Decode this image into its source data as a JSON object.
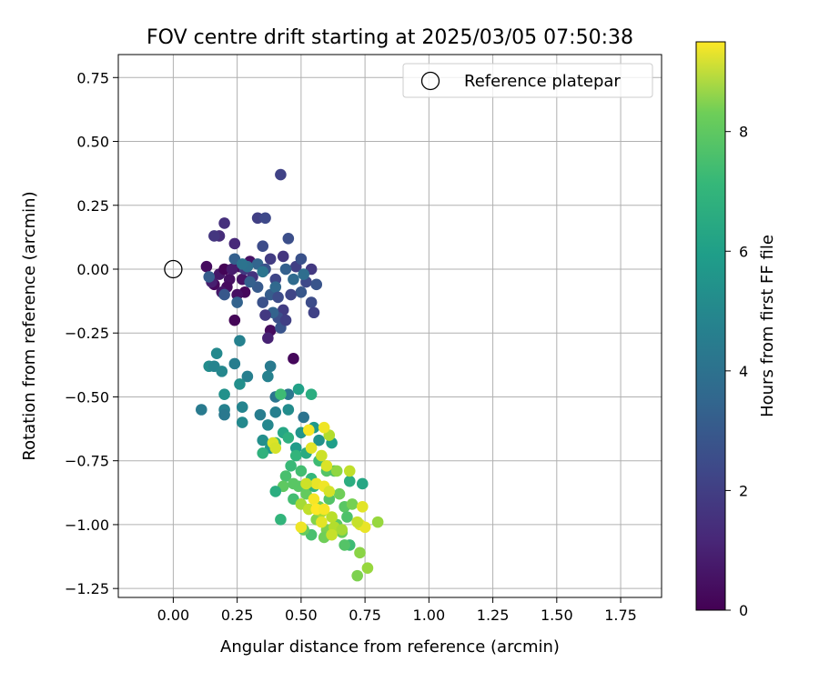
{
  "chart_data": {
    "type": "scatter",
    "title": "FOV centre drift starting at 2025/03/05 07:50:38",
    "xlabel": "Angular distance from reference (arcmin)",
    "ylabel": "Rotation from reference (arcmin)",
    "xlim": [
      -0.215,
      1.91
    ],
    "ylim": [
      -1.285,
      0.84
    ],
    "xticks": [
      0.0,
      0.25,
      0.5,
      0.75,
      1.0,
      1.25,
      1.5,
      1.75
    ],
    "xtick_labels": [
      "0.00",
      "0.25",
      "0.50",
      "0.75",
      "1.00",
      "1.25",
      "1.50",
      "1.75"
    ],
    "yticks": [
      0.75,
      0.5,
      0.25,
      0.0,
      -0.25,
      -0.5,
      -0.75,
      -1.0,
      -1.25
    ],
    "ytick_labels": [
      "0.75",
      "0.50",
      "0.25",
      "0.00",
      "−0.25",
      "−0.50",
      "−0.75",
      "−1.00",
      "−1.25"
    ],
    "grid": true,
    "legend": {
      "position": "top-right",
      "entries": [
        "Reference platepar"
      ]
    },
    "reference_point": {
      "x": 0.0,
      "y": 0.0,
      "label": "Reference platepar"
    },
    "colorbar": {
      "label": "Hours from first FF file",
      "colormap": "viridis",
      "range": [
        0,
        9.5
      ],
      "ticks": [
        0,
        2,
        4,
        6,
        8
      ],
      "tick_labels": [
        "0",
        "2",
        "4",
        "6",
        "8"
      ]
    },
    "series": [
      {
        "color_dimension": "hours",
        "points": [
          {
            "x": 0.13,
            "y": 0.01,
            "c": 0.3
          },
          {
            "x": 0.16,
            "y": -0.06,
            "c": 0.2
          },
          {
            "x": 0.18,
            "y": -0.02,
            "c": 0.6
          },
          {
            "x": 0.2,
            "y": 0.0,
            "c": 0.1
          },
          {
            "x": 0.22,
            "y": -0.04,
            "c": 0.4
          },
          {
            "x": 0.24,
            "y": -0.2,
            "c": 0.1
          },
          {
            "x": 0.26,
            "y": 0.01,
            "c": 0.3
          },
          {
            "x": 0.28,
            "y": -0.09,
            "c": 0.2
          },
          {
            "x": 0.3,
            "y": 0.03,
            "c": 0.5
          },
          {
            "x": 0.21,
            "y": -0.07,
            "c": 0.3
          },
          {
            "x": 0.25,
            "y": -0.1,
            "c": 0.4
          },
          {
            "x": 0.19,
            "y": -0.09,
            "c": 0.6
          },
          {
            "x": 0.23,
            "y": 0.0,
            "c": 0.7
          },
          {
            "x": 0.27,
            "y": -0.04,
            "c": 0.5
          },
          {
            "x": 0.15,
            "y": -0.05,
            "c": 0.8
          },
          {
            "x": 0.38,
            "y": -0.24,
            "c": 0.3
          },
          {
            "x": 0.47,
            "y": -0.35,
            "c": 0.2
          },
          {
            "x": 0.37,
            "y": -0.27,
            "c": 0.9
          },
          {
            "x": 0.18,
            "y": 0.13,
            "c": 1.2
          },
          {
            "x": 0.16,
            "y": 0.13,
            "c": 1.5
          },
          {
            "x": 0.2,
            "y": 0.18,
            "c": 1.3
          },
          {
            "x": 0.24,
            "y": 0.1,
            "c": 1.1
          },
          {
            "x": 0.28,
            "y": 0.0,
            "c": 1.6
          },
          {
            "x": 0.31,
            "y": -0.03,
            "c": 1.4
          },
          {
            "x": 0.33,
            "y": 0.2,
            "c": 1.8
          },
          {
            "x": 0.36,
            "y": 0.2,
            "c": 2.1
          },
          {
            "x": 0.42,
            "y": 0.37,
            "c": 1.9
          },
          {
            "x": 0.35,
            "y": 0.09,
            "c": 2.2
          },
          {
            "x": 0.38,
            "y": 0.04,
            "c": 1.7
          },
          {
            "x": 0.4,
            "y": -0.04,
            "c": 2.0
          },
          {
            "x": 0.43,
            "y": 0.05,
            "c": 1.5
          },
          {
            "x": 0.45,
            "y": 0.12,
            "c": 2.3
          },
          {
            "x": 0.48,
            "y": 0.01,
            "c": 1.8
          },
          {
            "x": 0.5,
            "y": 0.04,
            "c": 2.4
          },
          {
            "x": 0.52,
            "y": -0.05,
            "c": 2.1
          },
          {
            "x": 0.54,
            "y": 0.0,
            "c": 1.6
          },
          {
            "x": 0.56,
            "y": -0.06,
            "c": 2.5
          },
          {
            "x": 0.54,
            "y": -0.13,
            "c": 2.2
          },
          {
            "x": 0.55,
            "y": -0.17,
            "c": 1.9
          },
          {
            "x": 0.5,
            "y": -0.09,
            "c": 2.6
          },
          {
            "x": 0.46,
            "y": -0.1,
            "c": 2.0
          },
          {
            "x": 0.43,
            "y": -0.16,
            "c": 1.7
          },
          {
            "x": 0.41,
            "y": -0.19,
            "c": 2.3
          },
          {
            "x": 0.42,
            "y": -0.23,
            "c": 2.5
          },
          {
            "x": 0.38,
            "y": -0.1,
            "c": 2.8
          },
          {
            "x": 0.35,
            "y": -0.13,
            "c": 2.4
          },
          {
            "x": 0.33,
            "y": -0.07,
            "c": 2.7
          },
          {
            "x": 0.3,
            "y": -0.05,
            "c": 2.9
          },
          {
            "x": 0.25,
            "y": -0.13,
            "c": 3.0
          },
          {
            "x": 0.2,
            "y": -0.1,
            "c": 2.6
          },
          {
            "x": 0.14,
            "y": -0.03,
            "c": 2.8
          },
          {
            "x": 0.24,
            "y": 0.04,
            "c": 2.9
          },
          {
            "x": 0.33,
            "y": 0.02,
            "c": 3.1
          },
          {
            "x": 0.36,
            "y": 0.0,
            "c": 2.4
          },
          {
            "x": 0.4,
            "y": -0.07,
            "c": 3.2
          },
          {
            "x": 0.44,
            "y": 0.0,
            "c": 2.9
          },
          {
            "x": 0.47,
            "y": -0.04,
            "c": 3.3
          },
          {
            "x": 0.51,
            "y": -0.02,
            "c": 3.4
          },
          {
            "x": 0.39,
            "y": -0.17,
            "c": 3.0
          },
          {
            "x": 0.36,
            "y": -0.18,
            "c": 1.6
          },
          {
            "x": 0.29,
            "y": 0.01,
            "c": 3.5
          },
          {
            "x": 0.27,
            "y": 0.02,
            "c": 3.6
          },
          {
            "x": 0.35,
            "y": -0.01,
            "c": 3.7
          },
          {
            "x": 0.41,
            "y": -0.11,
            "c": 2.2
          },
          {
            "x": 0.44,
            "y": -0.2,
            "c": 1.8
          },
          {
            "x": 0.26,
            "y": -0.28,
            "c": 4.2
          },
          {
            "x": 0.17,
            "y": -0.33,
            "c": 4.5
          },
          {
            "x": 0.14,
            "y": -0.38,
            "c": 4.6
          },
          {
            "x": 0.16,
            "y": -0.38,
            "c": 4.3
          },
          {
            "x": 0.19,
            "y": -0.4,
            "c": 4.4
          },
          {
            "x": 0.24,
            "y": -0.37,
            "c": 4.0
          },
          {
            "x": 0.29,
            "y": -0.42,
            "c": 4.1
          },
          {
            "x": 0.26,
            "y": -0.45,
            "c": 4.7
          },
          {
            "x": 0.2,
            "y": -0.49,
            "c": 4.8
          },
          {
            "x": 0.2,
            "y": -0.55,
            "c": 4.2
          },
          {
            "x": 0.2,
            "y": -0.57,
            "c": 3.8
          },
          {
            "x": 0.11,
            "y": -0.55,
            "c": 3.9
          },
          {
            "x": 0.27,
            "y": -0.54,
            "c": 4.3
          },
          {
            "x": 0.27,
            "y": -0.6,
            "c": 4.5
          },
          {
            "x": 0.34,
            "y": -0.57,
            "c": 4.0
          },
          {
            "x": 0.38,
            "y": -0.38,
            "c": 3.9
          },
          {
            "x": 0.37,
            "y": -0.42,
            "c": 4.2
          },
          {
            "x": 0.4,
            "y": -0.5,
            "c": 3.7
          },
          {
            "x": 0.4,
            "y": -0.56,
            "c": 4.1
          },
          {
            "x": 0.37,
            "y": -0.61,
            "c": 4.4
          },
          {
            "x": 0.45,
            "y": -0.49,
            "c": 3.8
          },
          {
            "x": 0.45,
            "y": -0.55,
            "c": 4.6
          },
          {
            "x": 0.51,
            "y": -0.58,
            "c": 3.6
          },
          {
            "x": 0.5,
            "y": -0.64,
            "c": 4.9
          },
          {
            "x": 0.35,
            "y": -0.67,
            "c": 4.7
          },
          {
            "x": 0.38,
            "y": -0.7,
            "c": 5.0
          },
          {
            "x": 0.43,
            "y": -0.64,
            "c": 5.6
          },
          {
            "x": 0.48,
            "y": -0.7,
            "c": 5.2
          },
          {
            "x": 0.54,
            "y": -0.49,
            "c": 5.9
          },
          {
            "x": 0.49,
            "y": -0.47,
            "c": 5.4
          },
          {
            "x": 0.42,
            "y": -0.49,
            "c": 6.5
          },
          {
            "x": 0.55,
            "y": -0.62,
            "c": 5.1
          },
          {
            "x": 0.57,
            "y": -0.67,
            "c": 4.8
          },
          {
            "x": 0.62,
            "y": -0.68,
            "c": 5.3
          },
          {
            "x": 0.35,
            "y": -0.72,
            "c": 6.1
          },
          {
            "x": 0.4,
            "y": -0.68,
            "c": 6.3
          },
          {
            "x": 0.45,
            "y": -0.66,
            "c": 6.0
          },
          {
            "x": 0.48,
            "y": -0.73,
            "c": 6.2
          },
          {
            "x": 0.52,
            "y": -0.72,
            "c": 5.8
          },
          {
            "x": 0.46,
            "y": -0.77,
            "c": 6.4
          },
          {
            "x": 0.44,
            "y": -0.81,
            "c": 6.7
          },
          {
            "x": 0.5,
            "y": -0.79,
            "c": 6.6
          },
          {
            "x": 0.54,
            "y": -0.82,
            "c": 6.3
          },
          {
            "x": 0.57,
            "y": -0.75,
            "c": 6.5
          },
          {
            "x": 0.6,
            "y": -0.79,
            "c": 6.9
          },
          {
            "x": 0.63,
            "y": -0.79,
            "c": 6.8
          },
          {
            "x": 0.49,
            "y": -0.85,
            "c": 7.0
          },
          {
            "x": 0.43,
            "y": -0.85,
            "c": 7.1
          },
          {
            "x": 0.4,
            "y": -0.87,
            "c": 5.9
          },
          {
            "x": 0.47,
            "y": -0.9,
            "c": 6.6
          },
          {
            "x": 0.52,
            "y": -0.88,
            "c": 7.2
          },
          {
            "x": 0.55,
            "y": -0.85,
            "c": 6.2
          },
          {
            "x": 0.57,
            "y": -0.93,
            "c": 7.3
          },
          {
            "x": 0.61,
            "y": -0.9,
            "c": 6.9
          },
          {
            "x": 0.65,
            "y": -0.88,
            "c": 7.4
          },
          {
            "x": 0.67,
            "y": -0.93,
            "c": 7.0
          },
          {
            "x": 0.7,
            "y": -0.92,
            "c": 7.5
          },
          {
            "x": 0.68,
            "y": -0.97,
            "c": 6.8
          },
          {
            "x": 0.64,
            "y": -1.0,
            "c": 7.1
          },
          {
            "x": 0.6,
            "y": -1.02,
            "c": 7.6
          },
          {
            "x": 0.54,
            "y": -1.04,
            "c": 6.7
          },
          {
            "x": 0.51,
            "y": -1.02,
            "c": 7.2
          },
          {
            "x": 0.56,
            "y": -0.98,
            "c": 7.7
          },
          {
            "x": 0.59,
            "y": -1.05,
            "c": 7.4
          },
          {
            "x": 0.66,
            "y": -1.03,
            "c": 7.3
          },
          {
            "x": 0.69,
            "y": -1.08,
            "c": 6.5
          },
          {
            "x": 0.67,
            "y": -1.08,
            "c": 6.9
          },
          {
            "x": 0.73,
            "y": -1.11,
            "c": 7.8
          },
          {
            "x": 0.76,
            "y": -1.17,
            "c": 8.0
          },
          {
            "x": 0.72,
            "y": -1.2,
            "c": 7.6
          },
          {
            "x": 0.74,
            "y": -0.84,
            "c": 5.6
          },
          {
            "x": 0.69,
            "y": -0.83,
            "c": 5.9
          },
          {
            "x": 0.42,
            "y": -0.98,
            "c": 6.2
          },
          {
            "x": 0.47,
            "y": -0.84,
            "c": 7.0
          },
          {
            "x": 0.5,
            "y": -0.92,
            "c": 8.2
          },
          {
            "x": 0.58,
            "y": -0.95,
            "c": 8.3
          },
          {
            "x": 0.62,
            "y": -0.97,
            "c": 8.5
          },
          {
            "x": 0.73,
            "y": -1.0,
            "c": 9.0
          },
          {
            "x": 0.75,
            "y": -1.01,
            "c": 9.2
          },
          {
            "x": 0.74,
            "y": -0.93,
            "c": 9.1
          },
          {
            "x": 0.72,
            "y": -0.99,
            "c": 8.7
          },
          {
            "x": 0.8,
            "y": -0.99,
            "c": 8.0
          },
          {
            "x": 0.69,
            "y": -0.79,
            "c": 8.6
          },
          {
            "x": 0.64,
            "y": -0.79,
            "c": 7.9
          },
          {
            "x": 0.61,
            "y": -0.65,
            "c": 8.4
          },
          {
            "x": 0.59,
            "y": -0.62,
            "c": 9.3
          },
          {
            "x": 0.53,
            "y": -0.63,
            "c": 9.4
          },
          {
            "x": 0.54,
            "y": -0.7,
            "c": 9.1
          },
          {
            "x": 0.58,
            "y": -0.73,
            "c": 8.8
          },
          {
            "x": 0.6,
            "y": -0.77,
            "c": 9.0
          },
          {
            "x": 0.56,
            "y": -0.84,
            "c": 9.2
          },
          {
            "x": 0.59,
            "y": -0.85,
            "c": 9.3
          },
          {
            "x": 0.61,
            "y": -0.87,
            "c": 8.9
          },
          {
            "x": 0.55,
            "y": -0.9,
            "c": 9.4
          },
          {
            "x": 0.53,
            "y": -0.94,
            "c": 8.6
          },
          {
            "x": 0.56,
            "y": -0.94,
            "c": 9.5
          },
          {
            "x": 0.59,
            "y": -0.94,
            "c": 9.4
          },
          {
            "x": 0.58,
            "y": -0.99,
            "c": 9.1
          },
          {
            "x": 0.5,
            "y": -1.01,
            "c": 9.3
          },
          {
            "x": 0.63,
            "y": -1.01,
            "c": 8.4
          },
          {
            "x": 0.66,
            "y": -1.02,
            "c": 8.2
          },
          {
            "x": 0.62,
            "y": -1.04,
            "c": 8.7
          },
          {
            "x": 0.52,
            "y": -0.84,
            "c": 8.8
          },
          {
            "x": 0.39,
            "y": -0.68,
            "c": 9.0
          },
          {
            "x": 0.4,
            "y": -0.7,
            "c": 8.9
          }
        ]
      }
    ]
  }
}
